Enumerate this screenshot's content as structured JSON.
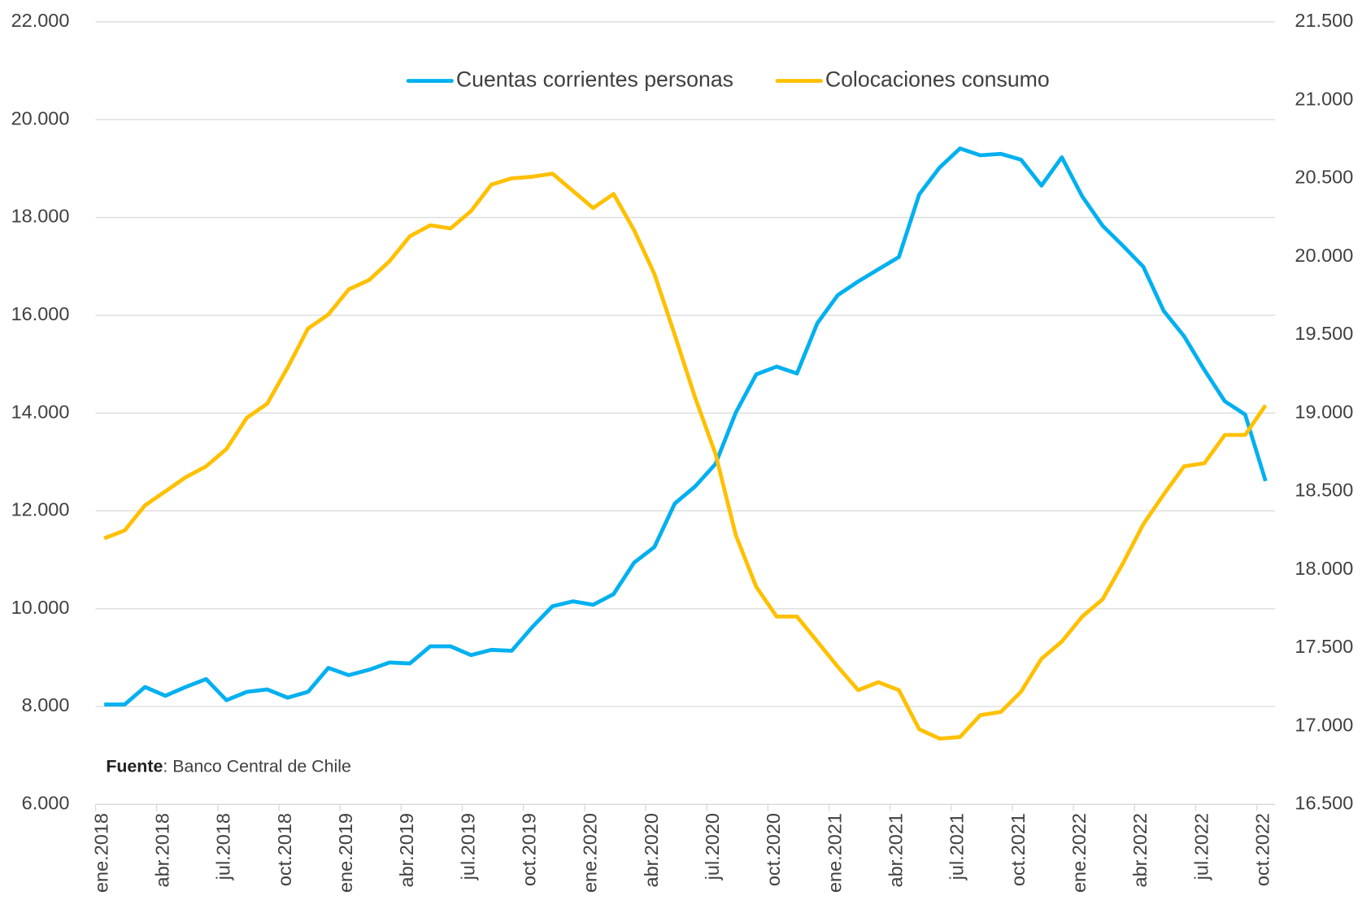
{
  "chart_data": {
    "type": "line",
    "categories": [
      "ene.2018",
      null,
      null,
      "abr.2018",
      null,
      null,
      "jul.2018",
      null,
      null,
      "oct.2018",
      null,
      null,
      "ene.2019",
      null,
      null,
      "abr.2019",
      null,
      null,
      "jul.2019",
      null,
      null,
      "oct.2019",
      null,
      null,
      "ene.2020",
      null,
      null,
      "abr.2020",
      null,
      null,
      "jul.2020",
      null,
      null,
      "oct.2020",
      null,
      null,
      "ene.2021",
      null,
      null,
      "abr.2021",
      null,
      null,
      "jul.2021",
      null,
      null,
      "oct.2021",
      null,
      null,
      "ene.2022",
      null,
      null,
      "abr.2022",
      null,
      null,
      "jul.2022",
      null,
      null,
      "oct.2022"
    ],
    "series": [
      {
        "name": "Cuentas corrientes personas",
        "color": "#00b0f0",
        "axis": "y",
        "values": [
          8040,
          8040,
          8400,
          8220,
          8400,
          8560,
          8130,
          8300,
          8350,
          8180,
          8300,
          8790,
          8640,
          8750,
          8900,
          8880,
          9230,
          9230,
          9050,
          9160,
          9140,
          9620,
          10050,
          10150,
          10080,
          10300,
          10940,
          11260,
          12150,
          12500,
          12960,
          14010,
          14790,
          14950,
          14810,
          15840,
          16410,
          16690,
          16940,
          17190,
          18470,
          19020,
          19410,
          19270,
          19300,
          19180,
          18650,
          19230,
          18430,
          17830,
          17420,
          16990,
          16090,
          15570,
          14880,
          14240,
          13970,
          12610
        ]
      },
      {
        "name": "Colocaciones consumo",
        "color": "#ffc000",
        "axis": "y2",
        "values": [
          18200,
          18250,
          18410,
          18500,
          18590,
          18660,
          18770,
          18970,
          19060,
          19290,
          19540,
          19630,
          19790,
          19850,
          19970,
          20130,
          20200,
          20180,
          20290,
          20460,
          20500,
          20510,
          20530,
          20420,
          20310,
          20400,
          20170,
          19890,
          19500,
          19100,
          18740,
          18220,
          17890,
          17700,
          17700,
          17540,
          17380,
          17230,
          17280,
          17230,
          16980,
          16920,
          16930,
          17070,
          17090,
          17220,
          17430,
          17540,
          17700,
          17810,
          18040,
          18290,
          18480,
          18660,
          18680,
          18860,
          18860,
          19050
        ]
      }
    ],
    "ylim": [
      6000,
      22000
    ],
    "yticks": [
      {
        "value": 6000,
        "label": "6.000"
      },
      {
        "value": 8000,
        "label": "8.000"
      },
      {
        "value": 10000,
        "label": "10.000"
      },
      {
        "value": 12000,
        "label": "12.000"
      },
      {
        "value": 14000,
        "label": "14.000"
      },
      {
        "value": 16000,
        "label": "16.000"
      },
      {
        "value": 18000,
        "label": "18.000"
      },
      {
        "value": 20000,
        "label": "20.000"
      },
      {
        "value": 22000,
        "label": "22.000"
      }
    ],
    "y2lim": [
      16500,
      21500
    ],
    "y2ticks": [
      {
        "value": 16500,
        "label": "16.500"
      },
      {
        "value": 17000,
        "label": "17.000"
      },
      {
        "value": 17500,
        "label": "17.500"
      },
      {
        "value": 18000,
        "label": "18.000"
      },
      {
        "value": 18500,
        "label": "18.500"
      },
      {
        "value": 19000,
        "label": "19.000"
      },
      {
        "value": 19500,
        "label": "19.500"
      },
      {
        "value": 20000,
        "label": "20.000"
      },
      {
        "value": 20500,
        "label": "20.500"
      },
      {
        "value": 21000,
        "label": "21.000"
      },
      {
        "value": 21500,
        "label": "21.500"
      }
    ],
    "grid": true,
    "legend": "top",
    "source": [
      "Fuente",
      ": Banco Central de Chile"
    ]
  }
}
